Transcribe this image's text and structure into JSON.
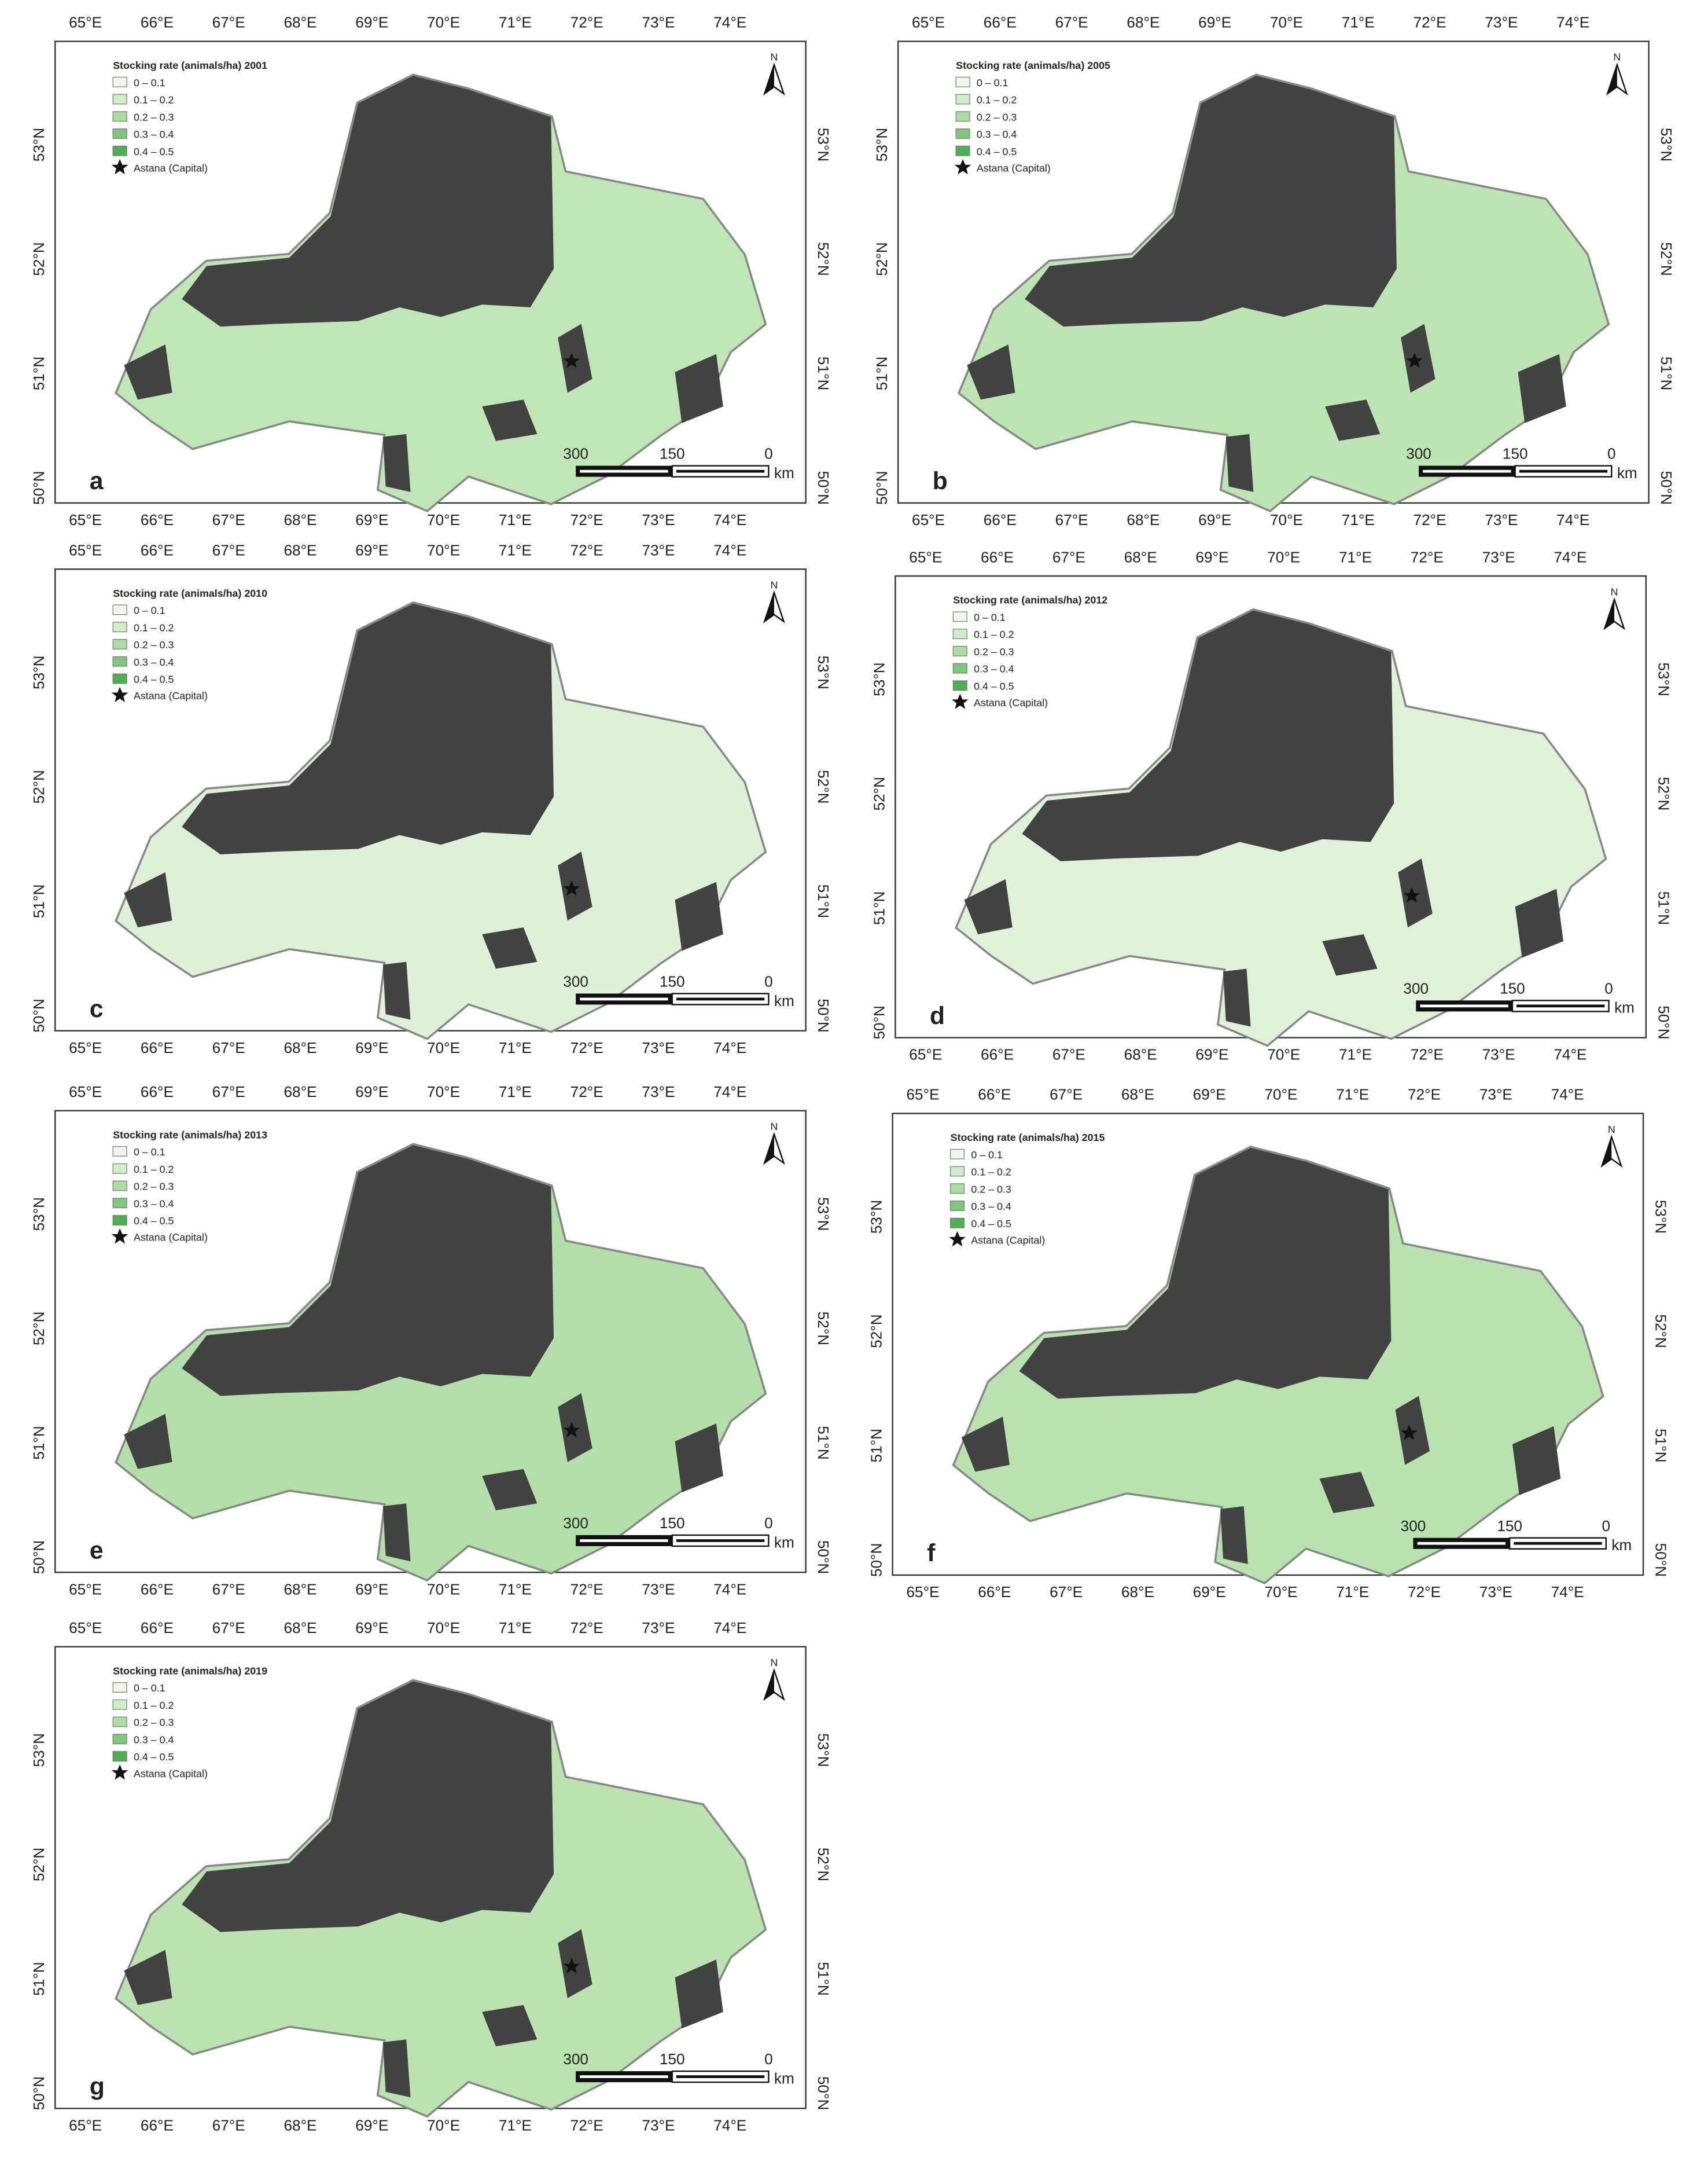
{
  "panels": [
    {
      "letter": "a",
      "legend_title": "Stocking rate (animals/ha) 2001"
    },
    {
      "letter": "b",
      "legend_title": "Stocking rate (animals/ha) 2005"
    },
    {
      "letter": "c",
      "legend_title": "Stocking rate (animals/ha) 2010"
    },
    {
      "letter": "d",
      "legend_title": "Stocking rate (animals/ha) 2012"
    },
    {
      "letter": "e",
      "legend_title": "Stocking rate (animals/ha) 2013"
    },
    {
      "letter": "f",
      "legend_title": "Stocking rate (animals/ha) 2015"
    },
    {
      "letter": "g",
      "legend_title": "Stocking rate (animals/ha) 2019"
    }
  ],
  "legend_classes": [
    {
      "label": "0 – 0.1",
      "color": "#eef7ea"
    },
    {
      "label": "0.1 – 0.2",
      "color": "#cdeec6"
    },
    {
      "label": "0.2 – 0.3",
      "color": "#a9dea0"
    },
    {
      "label": "0.3 – 0.4",
      "color": "#7cc97a"
    },
    {
      "label": "0.4 – 0.5",
      "color": "#4caf50"
    }
  ],
  "capital": "Astana (Capital)",
  "north": "N",
  "longitudes": [
    "65°E",
    "66°E",
    "67°E",
    "68°E",
    "69°E",
    "70°E",
    "71°E",
    "72°E",
    "73°E",
    "74°E"
  ],
  "latitudes": [
    "53°N",
    "52°N",
    "51°N",
    "50°N"
  ],
  "scale": {
    "labels": [
      "300",
      "150",
      "0"
    ],
    "unit": "km"
  }
}
